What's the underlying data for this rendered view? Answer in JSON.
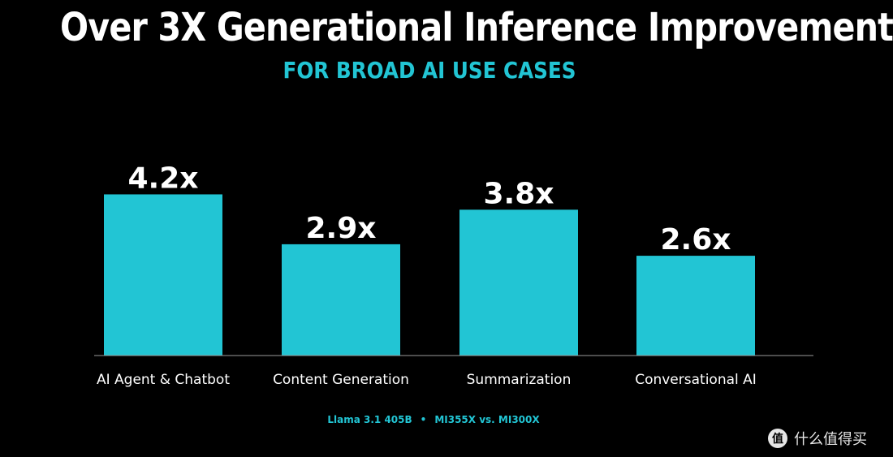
{
  "header": {
    "title": "Over 3X Generational Inference Improvement",
    "subtitle": "FOR BROAD AI USE CASES"
  },
  "footnote": {
    "model": "Llama 3.1 405B",
    "separator": "•",
    "comparison": "MI355X vs. MI300X"
  },
  "watermark": {
    "logo_glyph": "值",
    "text": "什么值得买"
  },
  "colors": {
    "background": "#000000",
    "bar": "#22c5d4",
    "text": "#ffffff",
    "accent": "#22c5d4",
    "axis": "#9a9a9a"
  },
  "chart_data": {
    "type": "bar",
    "title": "Over 3X Generational Inference Improvement",
    "subtitle": "FOR BROAD AI USE CASES",
    "categories": [
      "AI Agent & Chatbot",
      "Content Generation",
      "Summarization",
      "Conversational AI"
    ],
    "values": [
      4.2,
      2.9,
      3.8,
      2.6
    ],
    "data_labels": [
      "4.2x",
      "2.9x",
      "3.8x",
      "2.6x"
    ],
    "ylim": [
      0,
      4.4
    ],
    "grid": false,
    "legend": "none"
  }
}
